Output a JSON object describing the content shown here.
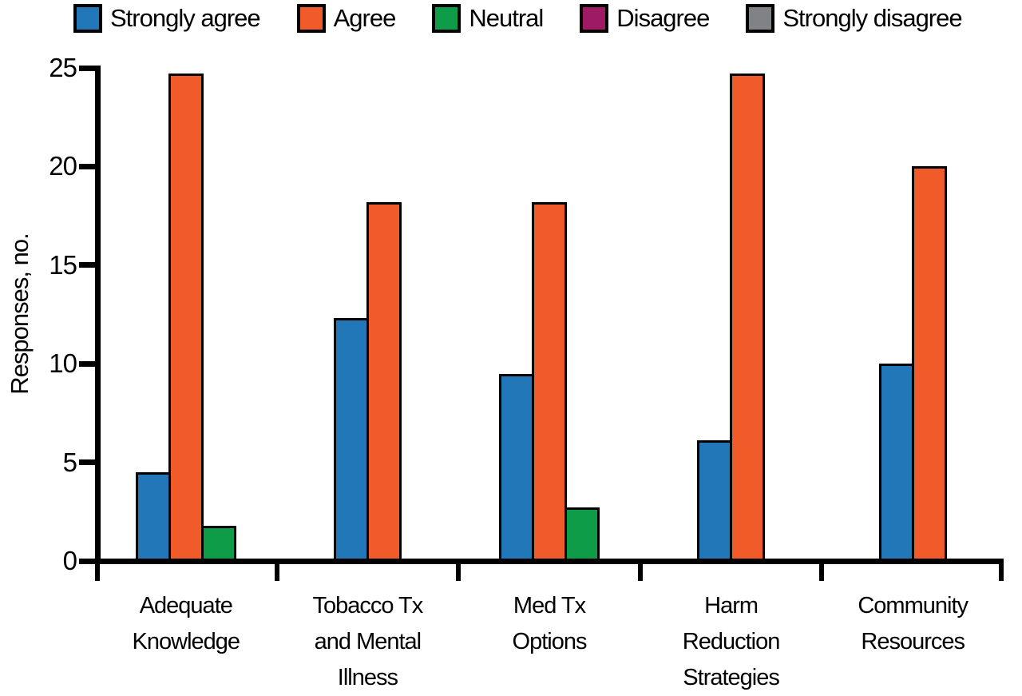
{
  "figure_title": "",
  "chart_data": {
    "type": "bar",
    "title": "",
    "xlabel": "",
    "ylabel": "Responses, no.",
    "ylim": [
      0,
      25
    ],
    "yticks": [
      0,
      5,
      10,
      15,
      20,
      25
    ],
    "grid": false,
    "legend_position": "top",
    "categories": [
      "Adequate Knowledge",
      "Tobacco Tx and Mental Illness",
      "Med Tx Options",
      "Harm Reduction Strategies",
      "Community Resources"
    ],
    "category_lines": [
      [
        "Adequate",
        "Knowledge"
      ],
      [
        "Tobacco Tx",
        "and Mental",
        "Illness"
      ],
      [
        "Med Tx",
        "Options"
      ],
      [
        "Harm",
        "Reduction",
        "Strategies"
      ],
      [
        "Community",
        "Resources"
      ]
    ],
    "series": [
      {
        "name": "Strongly agree",
        "color": "#2177B8",
        "values": [
          4.5,
          12.3,
          9.5,
          6.1,
          10.0
        ]
      },
      {
        "name": "Agree",
        "color": "#F15A29",
        "values": [
          24.7,
          18.2,
          18.2,
          24.7,
          20.0
        ]
      },
      {
        "name": "Neutral",
        "color": "#0E9C49",
        "values": [
          1.8,
          0,
          2.7,
          0,
          0
        ]
      },
      {
        "name": "Disagree",
        "color": "#9E1B64",
        "values": [
          0,
          0,
          0,
          0,
          0
        ]
      },
      {
        "name": "Strongly disagree",
        "color": "#808285",
        "values": [
          0,
          0,
          0,
          0,
          0
        ]
      }
    ],
    "colors": {
      "axis": "#000000",
      "background": "#ffffff"
    }
  }
}
